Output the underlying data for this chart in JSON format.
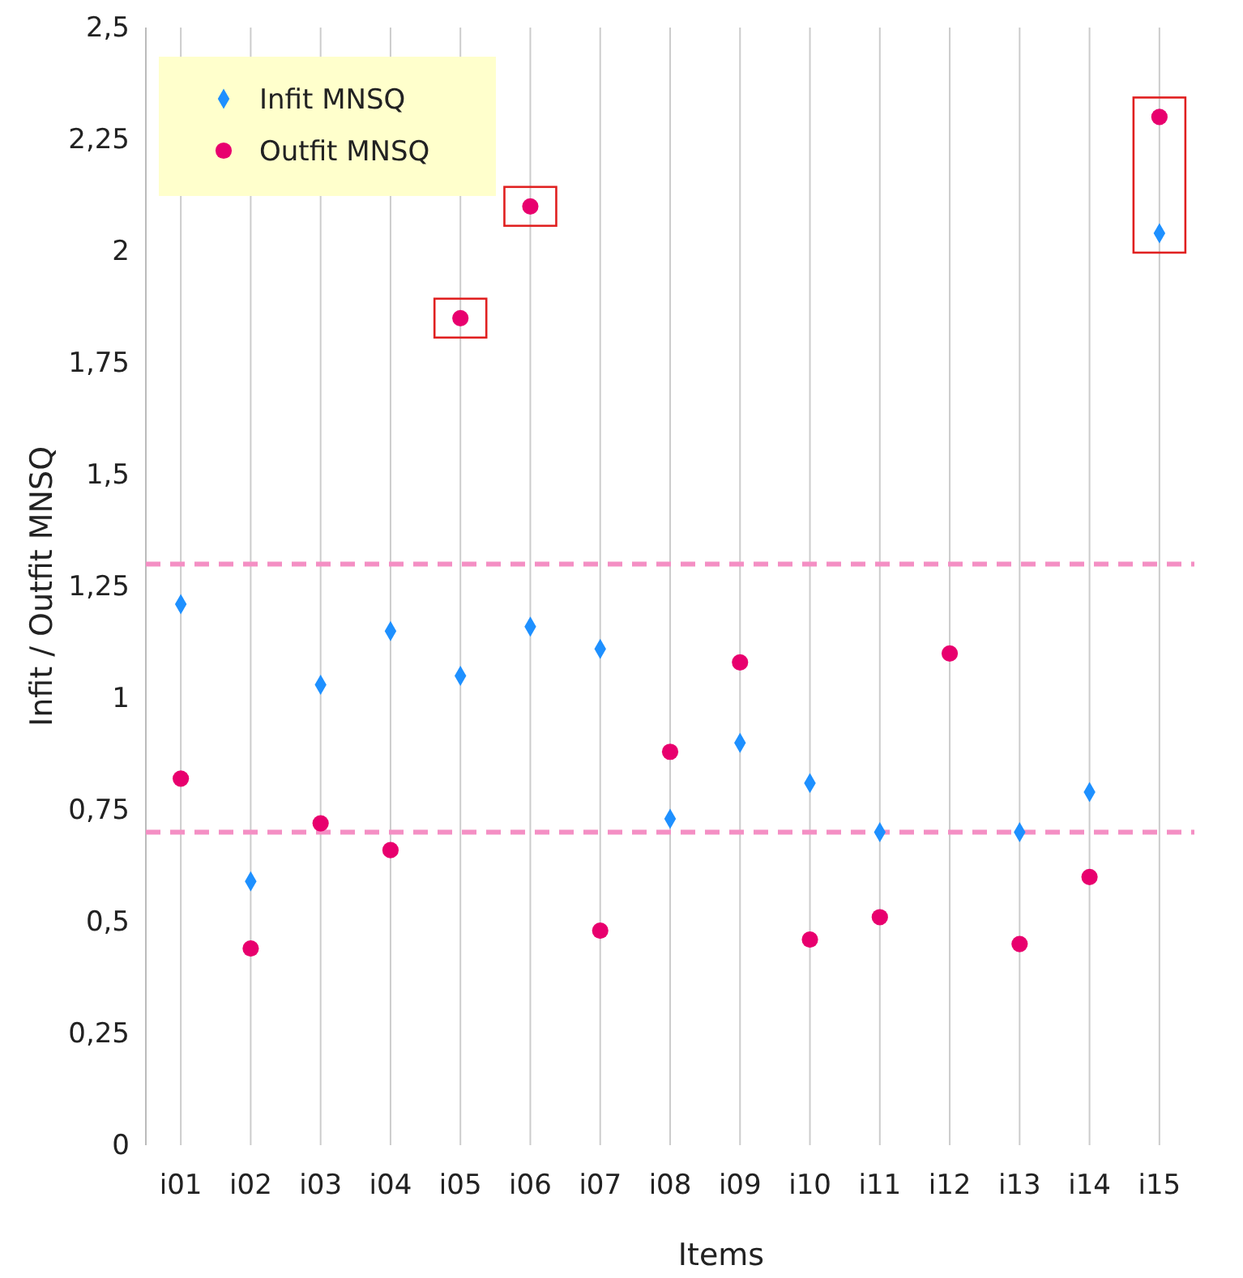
{
  "chart_data": {
    "type": "scatter",
    "xlabel": "Items",
    "ylabel": "Infit / Outfit MNSQ",
    "categories": [
      "i01",
      "i02",
      "i03",
      "i04",
      "i05",
      "i06",
      "i07",
      "i08",
      "i09",
      "i10",
      "i11",
      "i12",
      "i13",
      "i14",
      "i15"
    ],
    "series": [
      {
        "name": "Infit MNSQ",
        "color": "#1e90ff",
        "marker": "diamond",
        "values": [
          1.21,
          0.59,
          1.03,
          1.15,
          1.05,
          1.16,
          1.11,
          0.73,
          0.9,
          0.81,
          0.7,
          null,
          0.7,
          0.79,
          2.04
        ]
      },
      {
        "name": "Outfit MNSQ",
        "color": "#e8006e",
        "marker": "circle",
        "values": [
          0.82,
          0.44,
          0.72,
          0.66,
          1.85,
          2.1,
          0.48,
          0.88,
          1.08,
          0.46,
          0.51,
          1.1,
          0.45,
          0.6,
          2.3
        ]
      }
    ],
    "ylim": [
      0,
      2.5
    ],
    "yticks": [
      0,
      {
        "value": 0.25,
        "label": "0,25"
      },
      {
        "value": 0.5,
        "label": "0,5"
      },
      {
        "value": 0.75,
        "label": "0,75"
      },
      1,
      {
        "value": 1.25,
        "label": "1,25"
      },
      {
        "value": 1.5,
        "label": "1,5"
      },
      {
        "value": 1.75,
        "label": "1,75"
      },
      2,
      {
        "value": 2.25,
        "label": "2,25"
      },
      {
        "value": 2.5,
        "label": "2,5"
      }
    ],
    "ref_lines": [
      {
        "axis": "y",
        "value": 1.3,
        "color": "#f48fc4",
        "line_style": "dashed"
      },
      {
        "axis": "y",
        "value": 0.7,
        "color": "#f48fc4",
        "line_style": "dashed"
      }
    ],
    "grid": "x",
    "legend": "top left"
  }
}
